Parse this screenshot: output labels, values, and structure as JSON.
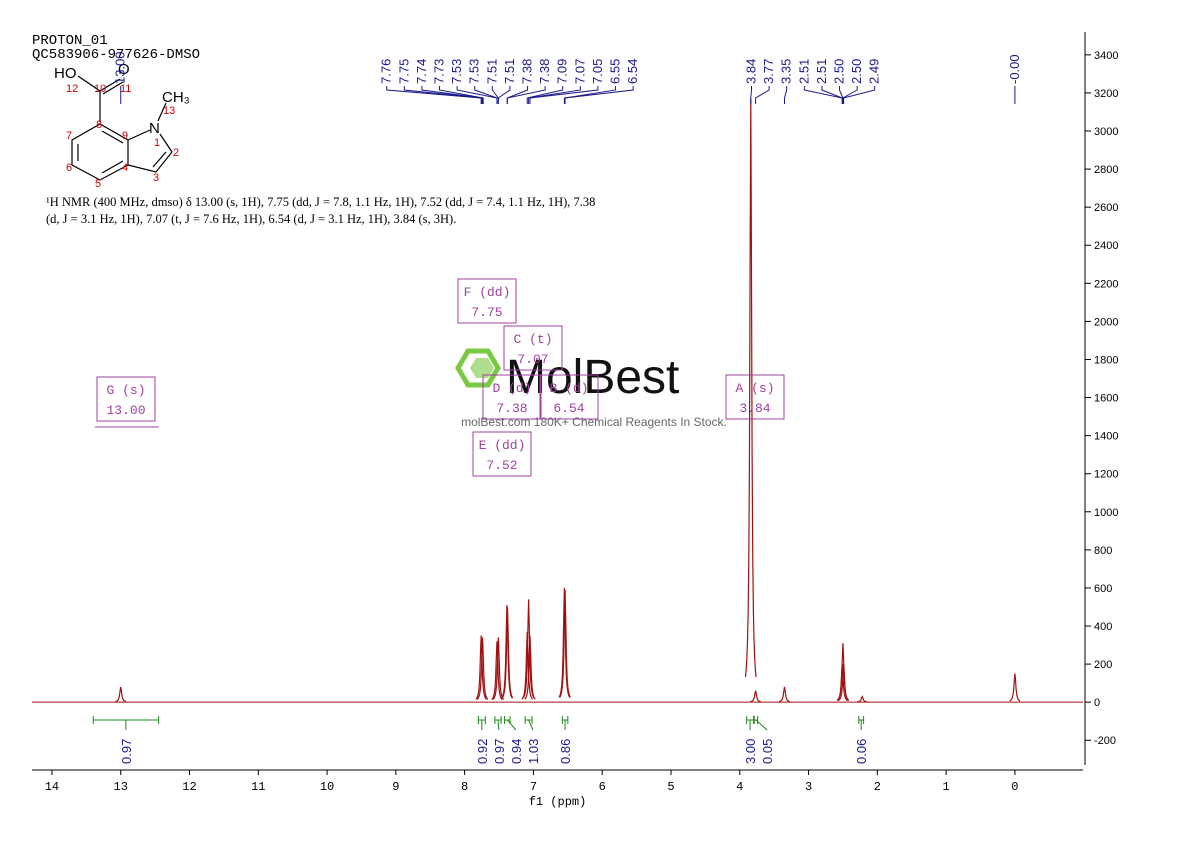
{
  "title": "PROTON_01",
  "subtitle": "QC583906-977626-DMSO",
  "molecule": {
    "atoms": [
      "HO",
      "O",
      "CH₃",
      "N"
    ],
    "numbers": [
      "12",
      "10",
      "11",
      "13",
      "8",
      "9",
      "1",
      "7",
      "2",
      "6",
      "4",
      "3",
      "5"
    ]
  },
  "description": "¹H NMR (400 MHz, dmso) δ 13.00 (s, 1H), 7.75 (dd, J = 7.8, 1.1 Hz, 1H), 7.52 (dd, J = 7.4, 1.1 Hz, 1H), 7.38 (d, J = 3.1 Hz, 1H), 7.07 (t, J = 7.6 Hz, 1H), 6.54 (d, J = 3.1 Hz, 1H), 3.84 (s, 3H).",
  "watermark": {
    "brand": "MolBest",
    "tagline": "molBest.com 180K+ Chemical Reagents In Stock."
  },
  "chart_data": {
    "type": "nmr",
    "x_label": "f1 (ppm)",
    "xlim": [
      14.29,
      -0.99
    ],
    "xticks": [
      14,
      13,
      12,
      11,
      10,
      9,
      8,
      7,
      6,
      5,
      4,
      3,
      2,
      1,
      0
    ],
    "ylim": [
      -330,
      3520
    ],
    "yticks": [
      -200,
      0,
      200,
      400,
      600,
      800,
      1000,
      1200,
      1400,
      1600,
      1800,
      2000,
      2200,
      2400,
      2600,
      2800,
      3000,
      3200,
      3400
    ],
    "color": "#a01010",
    "x": [
      13.0,
      7.76,
      7.74,
      7.53,
      7.51,
      7.385,
      7.377,
      7.09,
      7.07,
      7.05,
      6.55,
      6.54,
      3.84,
      3.77,
      3.35,
      2.51,
      2.5,
      2.49,
      2.22,
      0.0
    ],
    "values": [
      80,
      350,
      340,
      320,
      340,
      510,
      500,
      370,
      540,
      350,
      600,
      590,
      3170,
      60,
      80,
      200,
      310,
      200,
      30,
      150
    ],
    "shift_labels": [
      {
        "value": 13,
        "label": "13.00"
      },
      7.76,
      7.75,
      7.74,
      7.73,
      7.53,
      7.53,
      7.51,
      7.51,
      7.38,
      7.38,
      7.09,
      7.07,
      7.05,
      6.55,
      6.54,
      3.84,
      3.77,
      3.35,
      2.51,
      2.51,
      {
        "value": 2.5,
        "label": "2.50"
      },
      {
        "value": 2.5,
        "label": "2.50"
      },
      2.49,
      {
        "value": 0,
        "label": "-0.00"
      }
    ],
    "integrals": [
      {
        "from": 13.4,
        "to": 12.45,
        "value": 0.97
      },
      {
        "from": 7.8,
        "to": 7.7,
        "value": 0.92
      },
      {
        "from": 7.56,
        "to": 7.47,
        "value": 0.97
      },
      {
        "from": 7.42,
        "to": 7.34,
        "value": 0.94
      },
      {
        "from": 7.12,
        "to": 7.02,
        "value": 1.03
      },
      {
        "from": 6.58,
        "to": 6.5,
        "value": 0.86
      },
      {
        "from": 3.9,
        "to": 3.8,
        "value": {
          "value": 3,
          "label": "3.00"
        }
      },
      {
        "from": 3.79,
        "to": 3.74,
        "value": 0.05
      },
      {
        "from": 2.27,
        "to": 2.2,
        "value": 0.06
      }
    ],
    "multiplets": {
      "names": [
        "G (s)",
        "F (dd)",
        "C (t)",
        "D (d)",
        "B (d)",
        "A (s)",
        "E (dd)"
      ],
      "shifts": [
        {
          "value": 13,
          "label": "13.00"
        },
        7.75,
        7.07,
        7.38,
        6.54,
        3.84,
        7.52
      ]
    }
  }
}
